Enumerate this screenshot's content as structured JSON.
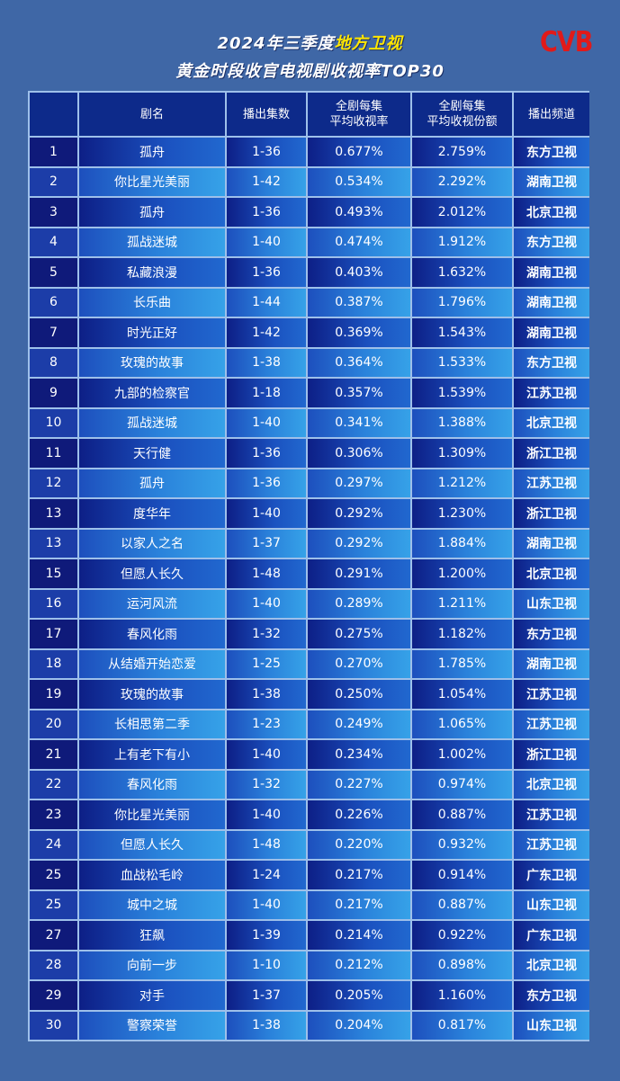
{
  "header": {
    "title_prefix": "2024年三季度",
    "title_highlight": "地方卫视",
    "subtitle": "黄金时段收官电视剧收视率TOP30",
    "logo": "CVB"
  },
  "table": {
    "columns": [
      "",
      "剧名",
      "播出集数",
      "全剧每集\n平均收视率",
      "全剧每集\n平均收视份额",
      "播出频道"
    ],
    "rows": [
      [
        "1",
        "孤舟",
        "1-36",
        "0.677%",
        "2.759%",
        "东方卫视"
      ],
      [
        "2",
        "你比星光美丽",
        "1-42",
        "0.534%",
        "2.292%",
        "湖南卫视"
      ],
      [
        "3",
        "孤舟",
        "1-36",
        "0.493%",
        "2.012%",
        "北京卫视"
      ],
      [
        "4",
        "孤战迷城",
        "1-40",
        "0.474%",
        "1.912%",
        "东方卫视"
      ],
      [
        "5",
        "私藏浪漫",
        "1-36",
        "0.403%",
        "1.632%",
        "湖南卫视"
      ],
      [
        "6",
        "长乐曲",
        "1-44",
        "0.387%",
        "1.796%",
        "湖南卫视"
      ],
      [
        "7",
        "时光正好",
        "1-42",
        "0.369%",
        "1.543%",
        "湖南卫视"
      ],
      [
        "8",
        "玫瑰的故事",
        "1-38",
        "0.364%",
        "1.533%",
        "东方卫视"
      ],
      [
        "9",
        "九部的检察官",
        "1-18",
        "0.357%",
        "1.539%",
        "江苏卫视"
      ],
      [
        "10",
        "孤战迷城",
        "1-40",
        "0.341%",
        "1.388%",
        "北京卫视"
      ],
      [
        "11",
        "天行健",
        "1-36",
        "0.306%",
        "1.309%",
        "浙江卫视"
      ],
      [
        "12",
        "孤舟",
        "1-36",
        "0.297%",
        "1.212%",
        "江苏卫视"
      ],
      [
        "13",
        "度华年",
        "1-40",
        "0.292%",
        "1.230%",
        "浙江卫视"
      ],
      [
        "13",
        "以家人之名",
        "1-37",
        "0.292%",
        "1.884%",
        "湖南卫视"
      ],
      [
        "15",
        "但愿人长久",
        "1-48",
        "0.291%",
        "1.200%",
        "北京卫视"
      ],
      [
        "16",
        "运河风流",
        "1-40",
        "0.289%",
        "1.211%",
        "山东卫视"
      ],
      [
        "17",
        "春风化雨",
        "1-32",
        "0.275%",
        "1.182%",
        "东方卫视"
      ],
      [
        "18",
        "从结婚开始恋爱",
        "1-25",
        "0.270%",
        "1.785%",
        "湖南卫视"
      ],
      [
        "19",
        "玫瑰的故事",
        "1-38",
        "0.250%",
        "1.054%",
        "江苏卫视"
      ],
      [
        "20",
        "长相思第二季",
        "1-23",
        "0.249%",
        "1.065%",
        "江苏卫视"
      ],
      [
        "21",
        "上有老下有小",
        "1-40",
        "0.234%",
        "1.002%",
        "浙江卫视"
      ],
      [
        "22",
        "春风化雨",
        "1-32",
        "0.227%",
        "0.974%",
        "北京卫视"
      ],
      [
        "23",
        "你比星光美丽",
        "1-40",
        "0.226%",
        "0.887%",
        "江苏卫视"
      ],
      [
        "24",
        "但愿人长久",
        "1-48",
        "0.220%",
        "0.932%",
        "江苏卫视"
      ],
      [
        "25",
        "血战松毛岭",
        "1-24",
        "0.217%",
        "0.914%",
        "广东卫视"
      ],
      [
        "25",
        "城中之城",
        "1-40",
        "0.217%",
        "0.887%",
        "山东卫视"
      ],
      [
        "27",
        "狂飙",
        "1-39",
        "0.214%",
        "0.922%",
        "广东卫视"
      ],
      [
        "28",
        "向前一步",
        "1-10",
        "0.212%",
        "0.898%",
        "北京卫视"
      ],
      [
        "29",
        "对手",
        "1-37",
        "0.205%",
        "1.160%",
        "东方卫视"
      ],
      [
        "30",
        "警察荣誉",
        "1-38",
        "0.204%",
        "0.817%",
        "山东卫视"
      ]
    ]
  }
}
